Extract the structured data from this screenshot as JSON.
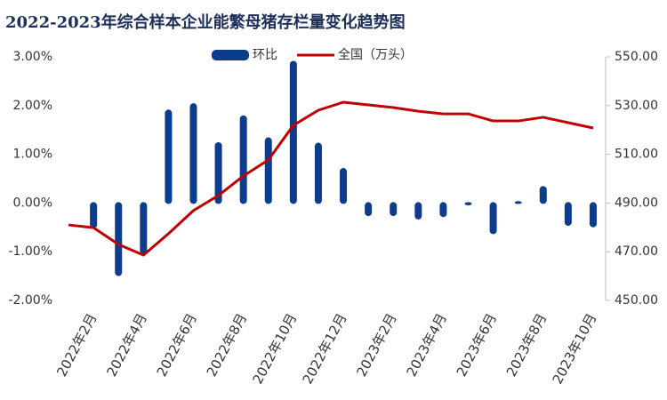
{
  "chart_data": {
    "type": "bar_line",
    "title": "2022-2023年综合样本企业能繁母猪存栏量变化趋势图",
    "categories": [
      null,
      "2022年2月",
      null,
      "2022年4月",
      null,
      "2022年6月",
      null,
      "2022年8月",
      null,
      "2022年10月",
      null,
      "2022年12月",
      null,
      "2023年2月",
      null,
      "2023年4月",
      null,
      "2023年6月",
      null,
      "2023年8月",
      null,
      "2023年10月"
    ],
    "series": [
      {
        "name": "环比",
        "type": "bar",
        "color": "#0b3d8c",
        "axis": "y",
        "values": [
          null,
          -0.5,
          -1.48,
          -1.03,
          1.9,
          2.03,
          1.23,
          1.78,
          1.33,
          2.9,
          1.22,
          0.7,
          -0.25,
          -0.25,
          -0.32,
          -0.27,
          -0.03,
          -0.62,
          0.02,
          0.33,
          -0.45,
          -0.48
        ]
      },
      {
        "name": "全国（万头）",
        "type": "line",
        "color": "#c00000",
        "axis": "y2",
        "values": [
          481.0,
          479.9,
          473.0,
          468.6,
          477.4,
          486.9,
          493.1,
          501.1,
          507.7,
          521.9,
          528.1,
          531.4,
          530.3,
          529.2,
          527.7,
          526.6,
          526.6,
          523.7,
          523.7,
          525.2,
          523.0,
          520.8
        ]
      }
    ],
    "ylim": [
      -2,
      3
    ],
    "yticks": [
      {
        "value": -2,
        "label": "-2.00%"
      },
      {
        "value": -1,
        "label": "-1.00%"
      },
      {
        "value": 0,
        "label": "0.00%"
      },
      {
        "value": 1,
        "label": "1.00%"
      },
      {
        "value": 2,
        "label": "2.00%"
      },
      {
        "value": 3,
        "label": "3.00%"
      }
    ],
    "y2lim": [
      450,
      550
    ],
    "y2ticks": [
      {
        "value": 450,
        "label": "450.00"
      },
      {
        "value": 470,
        "label": "470.00"
      },
      {
        "value": 490,
        "label": "490.00"
      },
      {
        "value": 510,
        "label": "510.00"
      },
      {
        "value": 530,
        "label": "530.00"
      },
      {
        "value": 550,
        "label": "550.00"
      }
    ],
    "legend": "top"
  }
}
